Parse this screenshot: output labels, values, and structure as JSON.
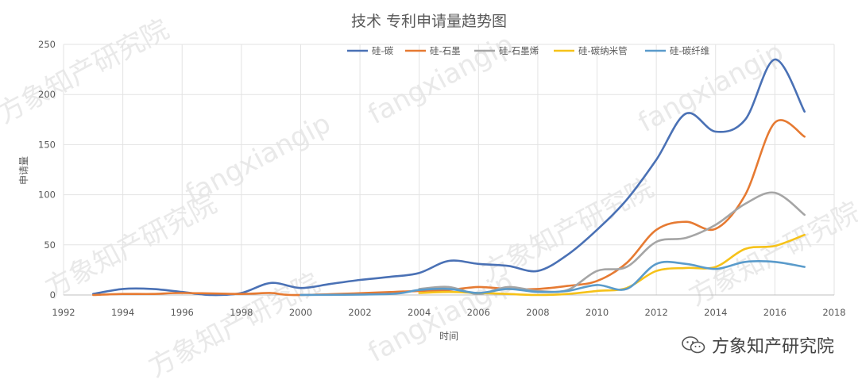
{
  "chart_data": {
    "type": "line",
    "title": "技术 专利申请量趋势图",
    "xlabel": "时间",
    "ylabel": "申请量",
    "xlim": [
      1992,
      2018
    ],
    "ylim": [
      0,
      250
    ],
    "xticks": [
      1992,
      1994,
      1996,
      1998,
      2000,
      2002,
      2004,
      2006,
      2008,
      2010,
      2012,
      2014,
      2016,
      2018
    ],
    "yticks": [
      0,
      50,
      100,
      150,
      200,
      250
    ],
    "grid": true,
    "legend_position": "top-right",
    "series": [
      {
        "name": "硅-碳",
        "color": "#4a71b5",
        "points": [
          [
            1993,
            1
          ],
          [
            1994,
            6
          ],
          [
            1995,
            6
          ],
          [
            1996,
            3
          ],
          [
            1997,
            0
          ],
          [
            1998,
            2
          ],
          [
            1999,
            12
          ],
          [
            2000,
            7
          ],
          [
            2001,
            11
          ],
          [
            2002,
            15
          ],
          [
            2003,
            18
          ],
          [
            2004,
            22
          ],
          [
            2005,
            34
          ],
          [
            2006,
            31
          ],
          [
            2007,
            29
          ],
          [
            2008,
            24
          ],
          [
            2009,
            40
          ],
          [
            2010,
            65
          ],
          [
            2011,
            95
          ],
          [
            2012,
            135
          ],
          [
            2013,
            181
          ],
          [
            2014,
            163
          ],
          [
            2015,
            175
          ],
          [
            2016,
            235
          ],
          [
            2017,
            183
          ]
        ]
      },
      {
        "name": "硅-石墨",
        "color": "#e67a32",
        "points": [
          [
            1993,
            0
          ],
          [
            1994,
            1
          ],
          [
            1995,
            1
          ],
          [
            1996,
            2
          ],
          [
            1998,
            1
          ],
          [
            1999,
            2
          ],
          [
            2000,
            0
          ],
          [
            2004,
            4
          ],
          [
            2005,
            5
          ],
          [
            2006,
            8
          ],
          [
            2007,
            6
          ],
          [
            2008,
            6
          ],
          [
            2009,
            9
          ],
          [
            2010,
            14
          ],
          [
            2011,
            32
          ],
          [
            2012,
            65
          ],
          [
            2013,
            73
          ],
          [
            2014,
            66
          ],
          [
            2015,
            100
          ],
          [
            2016,
            172
          ],
          [
            2017,
            158
          ]
        ]
      },
      {
        "name": "硅-石墨烯",
        "color": "#a5a5a5",
        "points": [
          [
            2004,
            6
          ],
          [
            2005,
            8
          ],
          [
            2006,
            1
          ],
          [
            2007,
            8
          ],
          [
            2008,
            4
          ],
          [
            2009,
            5
          ],
          [
            2010,
            24
          ],
          [
            2011,
            28
          ],
          [
            2012,
            53
          ],
          [
            2013,
            57
          ],
          [
            2014,
            70
          ],
          [
            2015,
            91
          ],
          [
            2016,
            102
          ],
          [
            2017,
            80
          ]
        ]
      },
      {
        "name": "硅-碳纳米管",
        "color": "#f6c219",
        "points": [
          [
            2004,
            2
          ],
          [
            2005,
            3
          ],
          [
            2006,
            2
          ],
          [
            2007,
            1
          ],
          [
            2008,
            0
          ],
          [
            2009,
            1
          ],
          [
            2010,
            4
          ],
          [
            2011,
            7
          ],
          [
            2012,
            24
          ],
          [
            2013,
            27
          ],
          [
            2014,
            28
          ],
          [
            2015,
            46
          ],
          [
            2016,
            49
          ],
          [
            2017,
            60
          ]
        ]
      },
      {
        "name": "硅-碳纤维",
        "color": "#5a9bcb",
        "points": [
          [
            2000,
            0
          ],
          [
            2003,
            1
          ],
          [
            2004,
            5
          ],
          [
            2005,
            6
          ],
          [
            2006,
            2
          ],
          [
            2007,
            6
          ],
          [
            2008,
            3
          ],
          [
            2009,
            4
          ],
          [
            2010,
            10
          ],
          [
            2011,
            6
          ],
          [
            2012,
            31
          ],
          [
            2013,
            31
          ],
          [
            2014,
            26
          ],
          [
            2015,
            33
          ],
          [
            2016,
            33
          ],
          [
            2017,
            28
          ]
        ]
      }
    ]
  },
  "watermark": {
    "brand_cn": "方象知产研究院",
    "brand_en": "fangxiangip"
  }
}
